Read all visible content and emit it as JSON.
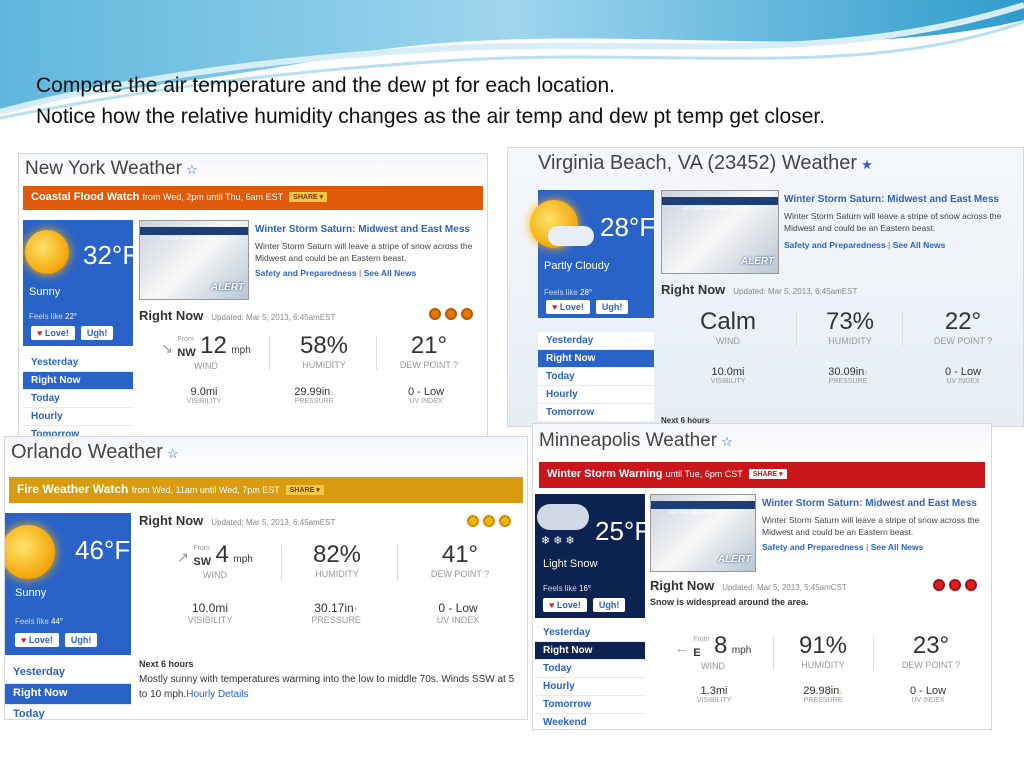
{
  "caption": {
    "line1": "Compare the air temperature and the dew pt for each location.",
    "line2": "Notice how the relative humidity changes as the air temp and dew pt temp get closer."
  },
  "colors": {
    "accent_blue": "#2a63c7",
    "coastal_flood_alert": "#e05a0c",
    "fire_weather_alert": "#d99c10",
    "winter_storm_alert": "#c8161a",
    "night_panel": "#0c2250"
  },
  "news": {
    "thumb_label": "WINTER WEATHER WATCH",
    "thumb_alert": "ALERT",
    "title": "Winter Storm Saturn: Midwest and East Mess",
    "text": "Winter Storm Saturn will leave a stripe of snow across the Midwest and could be an Eastern beast.",
    "link1": "Safety and Preparedness",
    "link_sep": "|",
    "link2": "See All News"
  },
  "common": {
    "love": "Love!",
    "ugh": "Ugh!",
    "right_now": "Right Now",
    "wind_label": "WIND",
    "humidity_label": "HUMIDITY",
    "dewpoint_label": "DEW POINT",
    "visibility_label": "VISIBILITY",
    "pressure_label": "PRESSURE",
    "uv_label": "UV INDEX",
    "from": "From",
    "mph": "mph",
    "feels": "Feels like",
    "share": "SHARE ▾",
    "star": "☆",
    "star_filled": "★",
    "help_icon": "?"
  },
  "ny": {
    "title": "New York Weather",
    "alert": "Coastal Flood Watch",
    "alert_sub": "from Wed, 2pm until Thu, 6am EST",
    "temp": "32°F",
    "condition": "Sunny",
    "feels_value": "22°",
    "updated": "Updated: Mar 5, 2013, 6:45amEST",
    "wind_dir": "NW",
    "wind_speed": "12",
    "humidity": "58%",
    "dewpoint": "21°",
    "visibility": "9.0mi",
    "pressure": "29.99in",
    "pressure_trend": "↓",
    "uv": "0 - Low",
    "nav": [
      "Yesterday",
      "Right Now",
      "Today",
      "Hourly",
      "Tomorrow"
    ]
  },
  "vb": {
    "title": "Virginia Beach, VA (23452) Weather",
    "temp": "28°F",
    "condition": "Partly Cloudy",
    "feels_value": "28°",
    "updated": "Updated: Mar 5, 2013, 6:45amEST",
    "wind": "Calm",
    "humidity": "73%",
    "dewpoint": "22°",
    "visibility": "10.0mi",
    "pressure": "30.09in",
    "pressure_trend": "↑",
    "uv": "0 - Low",
    "nav": [
      "Yesterday",
      "Right Now",
      "Today",
      "Hourly",
      "Tomorrow"
    ],
    "next_hours": "Next 6 hours"
  },
  "orlando": {
    "title": "Orlando Weather",
    "alert": "Fire Weather Watch",
    "alert_sub": "from Wed, 11am until Wed, 7pm EST",
    "temp": "46°F",
    "condition": "Sunny",
    "feels_value": "44°",
    "updated": "Updated: Mar 5, 2013, 6:45amEST",
    "wind_dir": "SW",
    "wind_speed": "4",
    "humidity": "82%",
    "dewpoint": "41°",
    "visibility": "10.0mi",
    "pressure": "30.17in",
    "pressure_trend": "↑",
    "uv": "0 - Low",
    "nav": [
      "Yesterday",
      "Right Now",
      "Today"
    ],
    "forecast_title": "Next 6 hours",
    "forecast_text": "Mostly sunny with temperatures warming into the low to middle 70s. Winds SSW at 5 to 10 mph.",
    "forecast_link": "Hourly Details"
  },
  "mpls": {
    "title": "Minneapolis Weather",
    "alert": "Winter Storm Warning",
    "alert_sub": "until Tue, 6pm CST",
    "temp": "25°F",
    "condition": "Light Snow",
    "feels_value": "16°",
    "updated": "Updated: Mar 5, 2013, 5:45amCST",
    "note": "Snow is widespread around the area.",
    "wind_dir": "E",
    "wind_speed": "8",
    "humidity": "91%",
    "dewpoint": "23°",
    "visibility": "1.3mi",
    "pressure": "29.98in",
    "pressure_trend": "↓",
    "uv": "0 - Low",
    "nav": [
      "Yesterday",
      "Right Now",
      "Today",
      "Hourly",
      "Tomorrow",
      "Weekend"
    ]
  }
}
